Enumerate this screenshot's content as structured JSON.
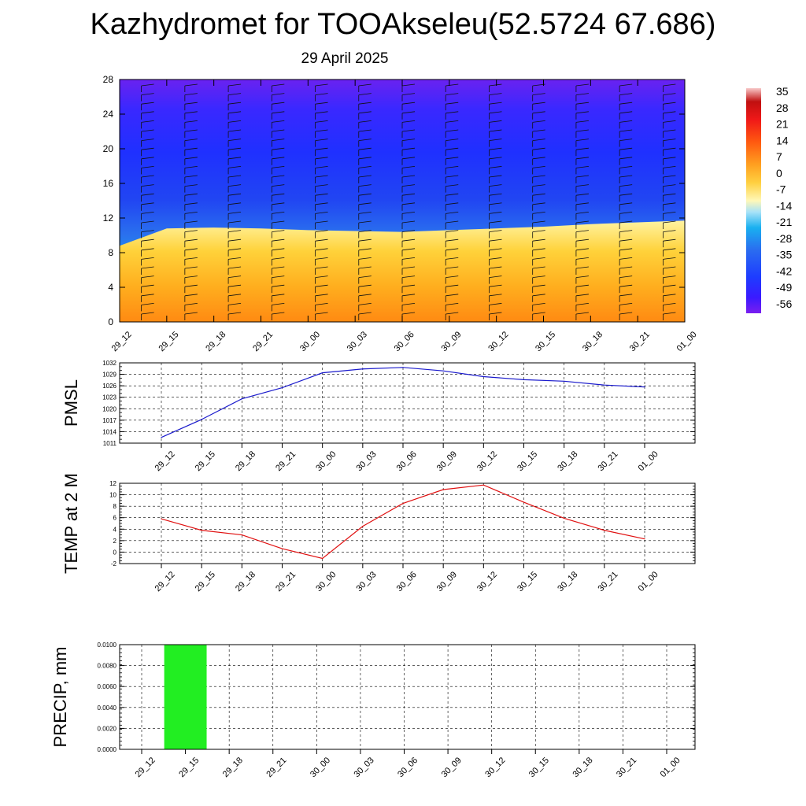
{
  "header": {
    "title": "Kazhydromet for TOOAkseleu(52.5724 67.686)",
    "date": "29 April 2025"
  },
  "colors": {
    "pmsl_line": "#1a1acc",
    "temp_line": "#e01010",
    "precip_bar": "#22ee22",
    "grid": "#000000"
  },
  "time_labels": [
    "29_12",
    "29_15",
    "29_18",
    "29_21",
    "30_00",
    "30_03",
    "30_06",
    "30_09",
    "30_12",
    "30_15",
    "30_18",
    "30_21",
    "01_00"
  ],
  "chart_data": [
    {
      "type": "heatmap",
      "title": "",
      "xlabel": "",
      "ylabel": "",
      "x": [
        "29_12",
        "29_15",
        "29_18",
        "29_21",
        "30_00",
        "30_03",
        "30_06",
        "30_09",
        "30_12",
        "30_15",
        "30_18",
        "30_21",
        "01_00"
      ],
      "yticks": [
        "0",
        "4",
        "8",
        "12",
        "16",
        "20",
        "24",
        "28"
      ],
      "ylim": [
        0,
        28
      ],
      "colorbar": {
        "labels": [
          "35",
          "28",
          "21",
          "14",
          "7",
          "0",
          "-7",
          "-14",
          "-21",
          "-28",
          "-35",
          "-42",
          "-49",
          "-56"
        ],
        "range": [
          -60,
          38
        ]
      },
      "freezing_level_km": [
        8.8,
        10.8,
        10.9,
        10.8,
        10.6,
        10.5,
        10.4,
        10.6,
        10.8,
        11.0,
        11.3,
        11.5,
        11.7
      ],
      "wind_barbs": true
    },
    {
      "type": "line",
      "title": "",
      "ylabel": "PMSL",
      "x": [
        "29_12",
        "29_15",
        "29_18",
        "29_21",
        "30_00",
        "30_03",
        "30_06",
        "30_09",
        "30_12",
        "30_15",
        "30_18",
        "30_21",
        "01_00"
      ],
      "yticks": [
        "1011",
        "1014",
        "1017",
        "1020",
        "1023",
        "1026",
        "1029",
        "1032"
      ],
      "ylim": [
        1011,
        1032
      ],
      "series": [
        {
          "values": [
            1012.5,
            1017.2,
            1022.6,
            1025.5,
            1029.4,
            1030.4,
            1030.8,
            1029.9,
            1028.4,
            1027.6,
            1027.2,
            1026.2,
            1025.7
          ]
        }
      ]
    },
    {
      "type": "line",
      "title": "",
      "ylabel": "TEMP at 2 M",
      "x": [
        "29_12",
        "29_15",
        "29_18",
        "29_21",
        "30_00",
        "30_03",
        "30_06",
        "30_09",
        "30_12",
        "30_15",
        "30_18",
        "30_21",
        "01_00"
      ],
      "yticks": [
        "-2",
        "0",
        "2",
        "4",
        "6",
        "8",
        "10",
        "12"
      ],
      "ylim": [
        -2,
        12
      ],
      "series": [
        {
          "values": [
            5.8,
            3.8,
            3.0,
            0.6,
            -1.1,
            4.5,
            8.5,
            10.9,
            11.7,
            8.7,
            5.9,
            3.8,
            2.3
          ]
        }
      ]
    },
    {
      "type": "bar",
      "title": "",
      "ylabel": "PRECIP, mm",
      "x": [
        "29_12",
        "29_15",
        "29_18",
        "29_21",
        "30_00",
        "30_03",
        "30_06",
        "30_09",
        "30_12",
        "30_15",
        "30_18",
        "30_21",
        "01_00"
      ],
      "yticks": [
        "0.0000",
        "0.0020",
        "0.0040",
        "0.0060",
        "0.0080",
        "0.0100"
      ],
      "ylim": [
        0,
        0.01
      ],
      "values": [
        0,
        0.01,
        0,
        0,
        0,
        0,
        0,
        0,
        0,
        0,
        0,
        0,
        0
      ]
    }
  ]
}
